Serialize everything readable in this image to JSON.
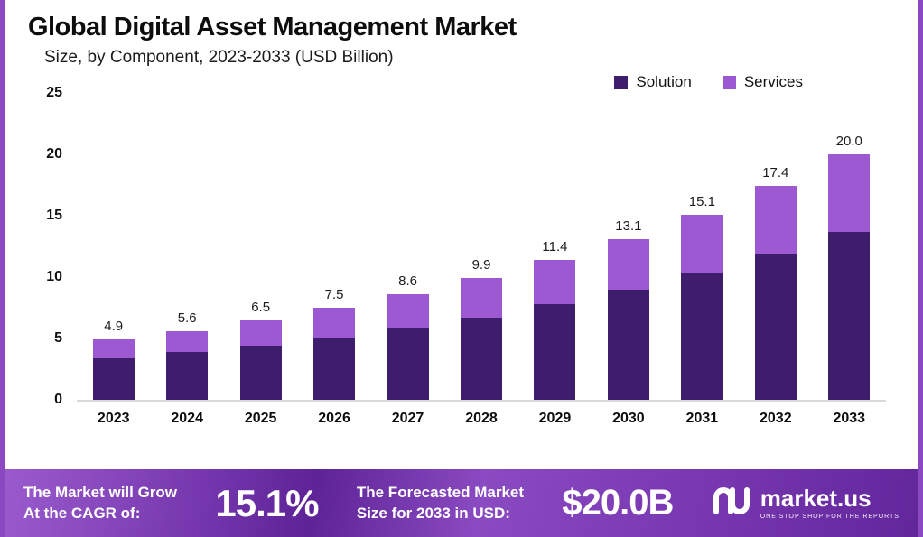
{
  "header": {
    "title": "Global Digital Asset Management Market",
    "subtitle": "Size, by Component, 2023-2033 (USD Billion)"
  },
  "chart_data": {
    "type": "bar",
    "stacked": true,
    "title": "Global Digital Asset Management Market Size, by Component, 2023-2033 (USD Billion)",
    "categories": [
      "2023",
      "2024",
      "2025",
      "2026",
      "2027",
      "2028",
      "2029",
      "2030",
      "2031",
      "2032",
      "2033"
    ],
    "series": [
      {
        "name": "Solution",
        "color": "#3f1d6d",
        "values": [
          3.4,
          3.9,
          4.4,
          5.1,
          5.9,
          6.7,
          7.8,
          9.0,
          10.4,
          11.9,
          13.7
        ]
      },
      {
        "name": "Services",
        "color": "#9c59d1",
        "values": [
          1.5,
          1.7,
          2.1,
          2.4,
          2.7,
          3.2,
          3.6,
          4.1,
          4.7,
          5.5,
          6.3
        ]
      }
    ],
    "totals": [
      4.9,
      5.6,
      6.5,
      7.5,
      8.6,
      9.9,
      11.4,
      13.1,
      15.1,
      17.4,
      20.0
    ],
    "xlabel": "",
    "ylabel": "",
    "ylim": [
      0,
      25
    ],
    "yticks": [
      0,
      5,
      10,
      15,
      20,
      25
    ],
    "grid": false,
    "legend_position": "top-right"
  },
  "banner": {
    "cagr_label_line1": "The Market will Grow",
    "cagr_label_line2": "At the CAGR of:",
    "cagr_value": "15.1%",
    "forecast_label_line1": "The Forecasted Market",
    "forecast_label_line2": "Size for 2033 in USD:",
    "forecast_value": "$20.0B",
    "brand_name": "market.us",
    "brand_tagline": "ONE STOP SHOP FOR THE REPORTS"
  },
  "colors": {
    "solution": "#3f1d6d",
    "services": "#9c59d1",
    "frame_border": "#8a49c0",
    "axis_line": "#d9d9d9",
    "banner_gradient_start": "#9a5ccd",
    "banner_gradient_end": "#62269b"
  }
}
